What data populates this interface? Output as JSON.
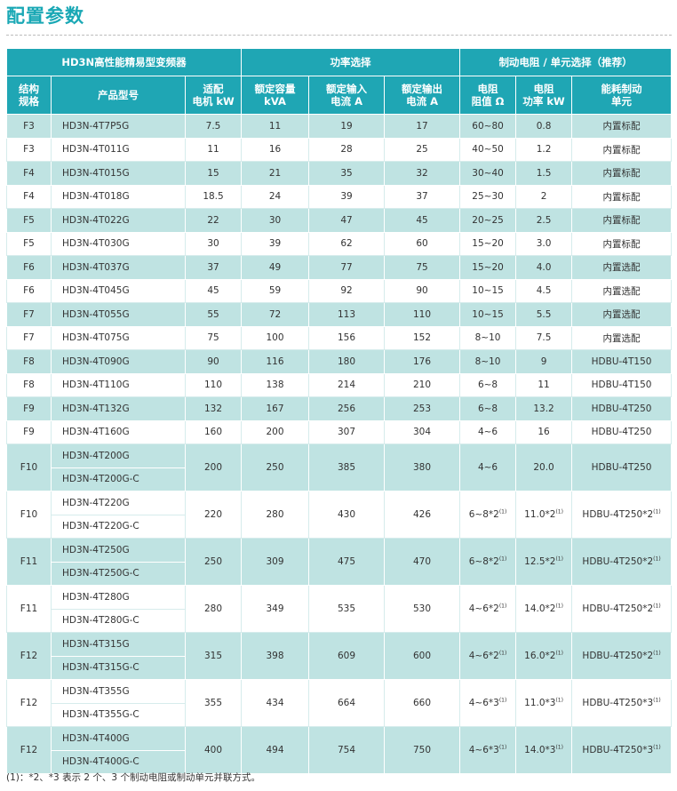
{
  "title": "配置参数",
  "header": {
    "group1": "HD3N高性能精易型变频器",
    "group2": "功率选择",
    "group3": "制动电阻 / 单元选择（推荐）",
    "cols": [
      "结构\n规格",
      "产品型号",
      "适配\n电机 kW",
      "额定容量\nkVA",
      "额定输入\n电流 A",
      "额定输出\n电流 A",
      "电阻\n阻值 Ω",
      "电阻\n功率 kW",
      "能耗制动\n单元"
    ]
  },
  "rows_single": [
    {
      "frame": "F3",
      "model": "HD3N-4T7P5G",
      "motor": "7.5",
      "kva": "11",
      "in": "19",
      "out": "17",
      "res": "60~80",
      "pw": "0.8",
      "unit": "内置标配"
    },
    {
      "frame": "F3",
      "model": "HD3N-4T011G",
      "motor": "11",
      "kva": "16",
      "in": "28",
      "out": "25",
      "res": "40~50",
      "pw": "1.2",
      "unit": "内置标配"
    },
    {
      "frame": "F4",
      "model": "HD3N-4T015G",
      "motor": "15",
      "kva": "21",
      "in": "35",
      "out": "32",
      "res": "30~40",
      "pw": "1.5",
      "unit": "内置标配"
    },
    {
      "frame": "F4",
      "model": "HD3N-4T018G",
      "motor": "18.5",
      "kva": "24",
      "in": "39",
      "out": "37",
      "res": "25~30",
      "pw": "2",
      "unit": "内置标配"
    },
    {
      "frame": "F5",
      "model": "HD3N-4T022G",
      "motor": "22",
      "kva": "30",
      "in": "47",
      "out": "45",
      "res": "20~25",
      "pw": "2.5",
      "unit": "内置标配"
    },
    {
      "frame": "F5",
      "model": "HD3N-4T030G",
      "motor": "30",
      "kva": "39",
      "in": "62",
      "out": "60",
      "res": "15~20",
      "pw": "3.0",
      "unit": "内置标配"
    },
    {
      "frame": "F6",
      "model": "HD3N-4T037G",
      "motor": "37",
      "kva": "49",
      "in": "77",
      "out": "75",
      "res": "15~20",
      "pw": "4.0",
      "unit": "内置选配"
    },
    {
      "frame": "F6",
      "model": "HD3N-4T045G",
      "motor": "45",
      "kva": "59",
      "in": "92",
      "out": "90",
      "res": "10~15",
      "pw": "4.5",
      "unit": "内置选配"
    },
    {
      "frame": "F7",
      "model": "HD3N-4T055G",
      "motor": "55",
      "kva": "72",
      "in": "113",
      "out": "110",
      "res": "10~15",
      "pw": "5.5",
      "unit": "内置选配"
    },
    {
      "frame": "F7",
      "model": "HD3N-4T075G",
      "motor": "75",
      "kva": "100",
      "in": "156",
      "out": "152",
      "res": "8~10",
      "pw": "7.5",
      "unit": "内置选配"
    },
    {
      "frame": "F8",
      "model": "HD3N-4T090G",
      "motor": "90",
      "kva": "116",
      "in": "180",
      "out": "176",
      "res": "8~10",
      "pw": "9",
      "unit": "HDBU-4T150"
    },
    {
      "frame": "F8",
      "model": "HD3N-4T110G",
      "motor": "110",
      "kva": "138",
      "in": "214",
      "out": "210",
      "res": "6~8",
      "pw": "11",
      "unit": "HDBU-4T150"
    },
    {
      "frame": "F9",
      "model": "HD3N-4T132G",
      "motor": "132",
      "kva": "167",
      "in": "256",
      "out": "253",
      "res": "6~8",
      "pw": "13.2",
      "unit": "HDBU-4T250"
    },
    {
      "frame": "F9",
      "model": "HD3N-4T160G",
      "motor": "160",
      "kva": "200",
      "in": "307",
      "out": "304",
      "res": "4~6",
      "pw": "16",
      "unit": "HDBU-4T250"
    }
  ],
  "rows_pair": [
    {
      "frame": "F10",
      "model_a": "HD3N-4T200G",
      "model_b": "HD3N-4T200G-C",
      "motor": "200",
      "kva": "250",
      "in": "385",
      "out": "380",
      "res": "4~6",
      "res_sup": "",
      "pw": "20.0",
      "pw_sup": "",
      "unit": "HDBU-4T250",
      "unit_sup": ""
    },
    {
      "frame": "F10",
      "model_a": "HD3N-4T220G",
      "model_b": "HD3N-4T220G-C",
      "motor": "220",
      "kva": "280",
      "in": "430",
      "out": "426",
      "res": "6~8*2",
      "res_sup": "(1)",
      "pw": "11.0*2",
      "pw_sup": "(1)",
      "unit": "HDBU-4T250*2",
      "unit_sup": "(1)"
    },
    {
      "frame": "F11",
      "model_a": "HD3N-4T250G",
      "model_b": "HD3N-4T250G-C",
      "motor": "250",
      "kva": "309",
      "in": "475",
      "out": "470",
      "res": "6~8*2",
      "res_sup": "(1)",
      "pw": "12.5*2",
      "pw_sup": "(1)",
      "unit": "HDBU-4T250*2",
      "unit_sup": "(1)"
    },
    {
      "frame": "F11",
      "model_a": "HD3N-4T280G",
      "model_b": "HD3N-4T280G-C",
      "motor": "280",
      "kva": "349",
      "in": "535",
      "out": "530",
      "res": "4~6*2",
      "res_sup": "(1)",
      "pw": "14.0*2",
      "pw_sup": "(1)",
      "unit": "HDBU-4T250*2",
      "unit_sup": "(1)"
    },
    {
      "frame": "F12",
      "model_a": "HD3N-4T315G",
      "model_b": "HD3N-4T315G-C",
      "motor": "315",
      "kva": "398",
      "in": "609",
      "out": "600",
      "res": "4~6*2",
      "res_sup": "(1)",
      "pw": "16.0*2",
      "pw_sup": "(1)",
      "unit": "HDBU-4T250*2",
      "unit_sup": "(1)"
    },
    {
      "frame": "F12",
      "model_a": "HD3N-4T355G",
      "model_b": "HD3N-4T355G-C",
      "motor": "355",
      "kva": "434",
      "in": "664",
      "out": "660",
      "res": "4~6*3",
      "res_sup": "(1)",
      "pw": "11.0*3",
      "pw_sup": "(1)",
      "unit": "HDBU-4T250*3",
      "unit_sup": "(1)"
    },
    {
      "frame": "F12",
      "model_a": "HD3N-4T400G",
      "model_b": "HD3N-4T400G-C",
      "motor": "400",
      "kva": "494",
      "in": "754",
      "out": "750",
      "res": "4~6*3",
      "res_sup": "(1)",
      "pw": "14.0*3",
      "pw_sup": "(1)",
      "unit": "HDBU-4T250*3",
      "unit_sup": "(1)"
    }
  ],
  "footnote": "(1)：*2、*3 表示 2 个、3 个制动电阻或制动单元并联方式。"
}
